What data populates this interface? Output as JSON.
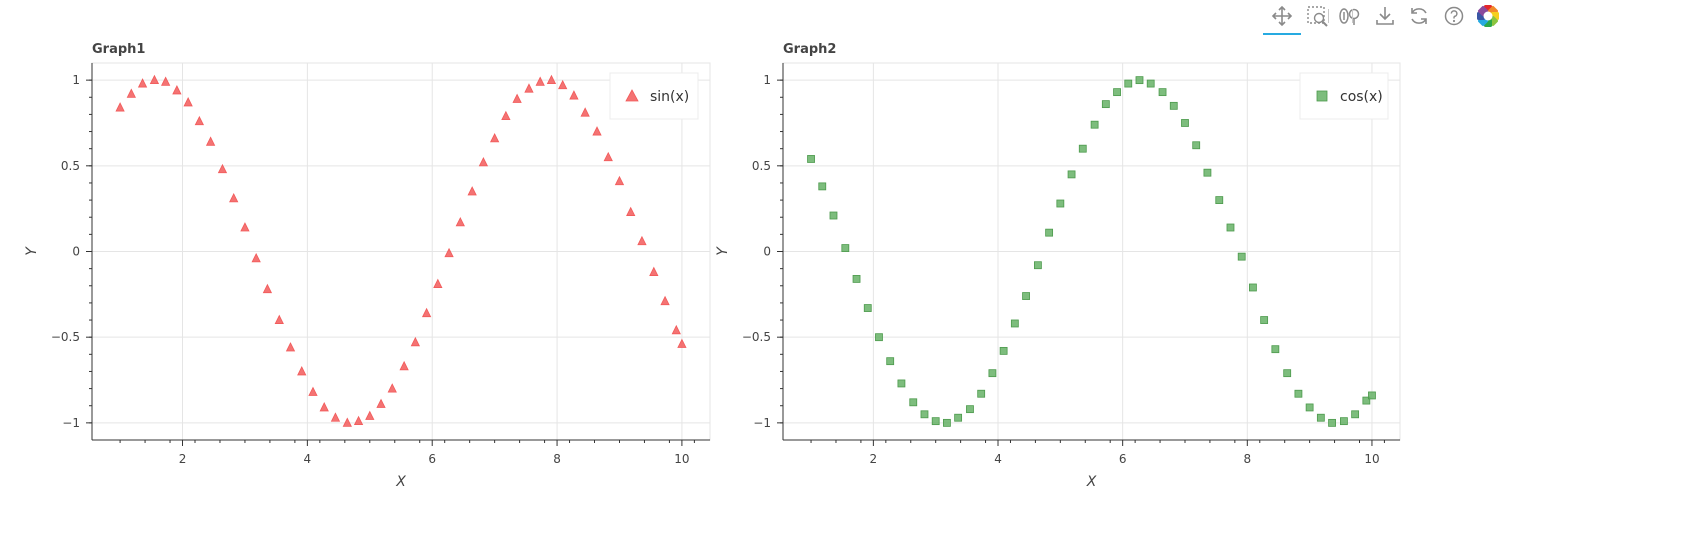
{
  "toolbar": {
    "tools": [
      {
        "name": "pan-tool",
        "icon": "move-arrows-icon",
        "active": true
      },
      {
        "name": "box-zoom-tool",
        "icon": "box-zoom-icon",
        "active": false
      },
      {
        "name": "lasso-hover-tool",
        "icon": "hover-icon",
        "active": false
      },
      {
        "name": "save-tool",
        "icon": "download-icon",
        "active": false
      },
      {
        "name": "reset-tool",
        "icon": "reset-icon",
        "active": false
      },
      {
        "name": "help-tool",
        "icon": "help-icon",
        "active": false
      },
      {
        "name": "bokeh-logo",
        "icon": "bokeh-logo-icon",
        "active": false
      }
    ]
  },
  "colors": {
    "sin": "#f25a5a",
    "cos": "#66b266",
    "grid": "#e5e5e5",
    "axis": "#333333"
  },
  "chart_data": [
    {
      "type": "scatter",
      "title": "Graph1",
      "xlabel": "X",
      "ylabel": "Y",
      "xlim": [
        0.55,
        10.45
      ],
      "ylim": [
        -1.1,
        1.1
      ],
      "xticks": [
        2,
        4,
        6,
        8,
        10
      ],
      "xtick_labels": [
        "2",
        "4",
        "6",
        "8",
        "10"
      ],
      "yticks": [
        -1,
        -0.5,
        0,
        0.5,
        1
      ],
      "ytick_labels": [
        "−1",
        "−0.5",
        "0",
        "0.5",
        "1"
      ],
      "grid": true,
      "legend_placement": "top-right",
      "series": [
        {
          "name": "sin(x)",
          "marker": "triangle",
          "x": [
            1,
            1.18,
            1.36,
            1.55,
            1.73,
            1.91,
            2.09,
            2.27,
            2.45,
            2.64,
            2.82,
            3.0,
            3.18,
            3.36,
            3.55,
            3.73,
            3.91,
            4.09,
            4.27,
            4.45,
            4.64,
            4.82,
            5.0,
            5.18,
            5.36,
            5.55,
            5.73,
            5.91,
            6.09,
            6.27,
            6.45,
            6.64,
            6.82,
            7.0,
            7.18,
            7.36,
            7.55,
            7.73,
            7.91,
            8.09,
            8.27,
            8.45,
            8.64,
            8.82,
            9.0,
            9.18,
            9.36,
            9.55,
            9.73,
            9.91,
            10.0
          ],
          "y": [
            0.84,
            0.92,
            0.98,
            1.0,
            0.99,
            0.94,
            0.87,
            0.76,
            0.64,
            0.48,
            0.31,
            0.14,
            -0.04,
            -0.22,
            -0.4,
            -0.56,
            -0.7,
            -0.82,
            -0.91,
            -0.97,
            -1.0,
            -0.99,
            -0.96,
            -0.89,
            -0.8,
            -0.67,
            -0.53,
            -0.36,
            -0.19,
            -0.01,
            0.17,
            0.35,
            0.52,
            0.66,
            0.79,
            0.89,
            0.95,
            0.99,
            1.0,
            0.97,
            0.91,
            0.81,
            0.7,
            0.55,
            0.41,
            0.23,
            0.06,
            -0.12,
            -0.29,
            -0.46,
            -0.54
          ]
        }
      ]
    },
    {
      "type": "scatter",
      "title": "Graph2",
      "xlabel": "X",
      "ylabel": "Y",
      "xlim": [
        0.55,
        10.45
      ],
      "ylim": [
        -1.1,
        1.1
      ],
      "xticks": [
        2,
        4,
        6,
        8,
        10
      ],
      "xtick_labels": [
        "2",
        "4",
        "6",
        "8",
        "10"
      ],
      "yticks": [
        -1,
        -0.5,
        0,
        0.5,
        1
      ],
      "ytick_labels": [
        "−1",
        "−0.5",
        "0",
        "0.5",
        "1"
      ],
      "grid": true,
      "legend_placement": "top-right",
      "series": [
        {
          "name": "cos(x)",
          "marker": "square",
          "x": [
            1,
            1.18,
            1.36,
            1.55,
            1.73,
            1.91,
            2.09,
            2.27,
            2.45,
            2.64,
            2.82,
            3.0,
            3.18,
            3.36,
            3.55,
            3.73,
            3.91,
            4.09,
            4.27,
            4.45,
            4.64,
            4.82,
            5.0,
            5.18,
            5.36,
            5.55,
            5.73,
            5.91,
            6.09,
            6.27,
            6.45,
            6.64,
            6.82,
            7.0,
            7.18,
            7.36,
            7.55,
            7.73,
            7.91,
            8.09,
            8.27,
            8.45,
            8.64,
            8.82,
            9.0,
            9.18,
            9.36,
            9.55,
            9.73,
            9.91,
            10.0
          ],
          "y": [
            0.54,
            0.38,
            0.21,
            0.02,
            -0.16,
            -0.33,
            -0.5,
            -0.64,
            -0.77,
            -0.88,
            -0.95,
            -0.99,
            -1.0,
            -0.97,
            -0.92,
            -0.83,
            -0.71,
            -0.58,
            -0.42,
            -0.26,
            -0.08,
            0.11,
            0.28,
            0.45,
            0.6,
            0.74,
            0.86,
            0.93,
            0.98,
            1.0,
            0.98,
            0.93,
            0.85,
            0.75,
            0.62,
            0.46,
            0.3,
            0.14,
            -0.03,
            -0.21,
            -0.4,
            -0.57,
            -0.71,
            -0.83,
            -0.91,
            -0.97,
            -1.0,
            -0.99,
            -0.95,
            -0.87,
            -0.84
          ]
        }
      ]
    }
  ]
}
